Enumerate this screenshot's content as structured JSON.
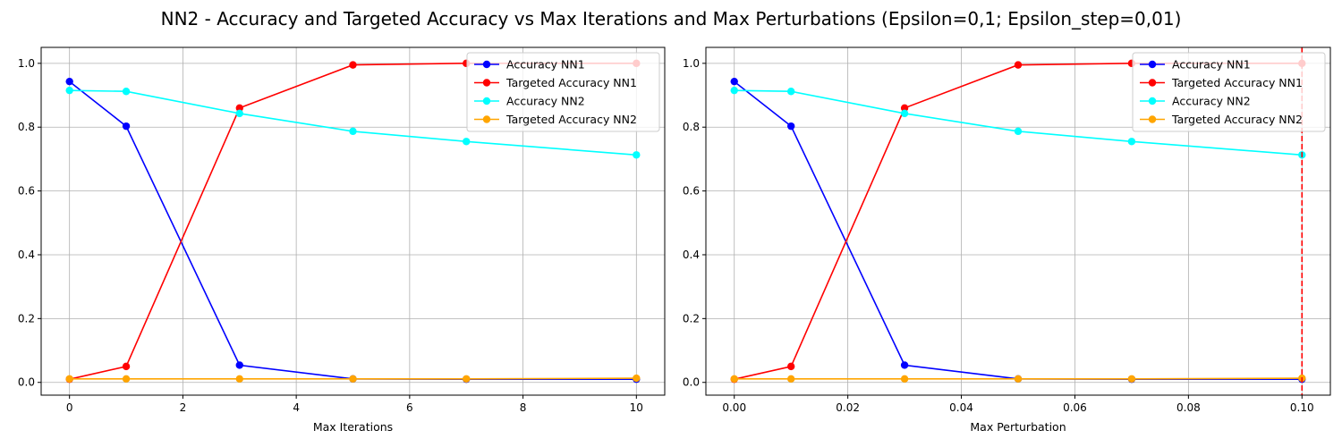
{
  "figure": {
    "suptitle": "NN2 - Accuracy and Targeted Accuracy vs Max Iterations and Max Perturbations (Epsilon=0,1; Epsilon_step=0,01)"
  },
  "chart_data": [
    {
      "type": "line",
      "xlabel": "Max Iterations",
      "ylabel": "",
      "x": [
        0,
        1,
        3,
        5,
        7,
        10
      ],
      "xlim": [
        -0.5,
        10.5
      ],
      "ylim": [
        -0.04,
        1.05
      ],
      "xticks": [
        0,
        2,
        4,
        6,
        8,
        10
      ],
      "xtick_labels": [
        "0",
        "2",
        "4",
        "6",
        "8",
        "10"
      ],
      "yticks": [
        0.0,
        0.2,
        0.4,
        0.6,
        0.8,
        1.0
      ],
      "ytick_labels": [
        "0.0",
        "0.2",
        "0.4",
        "0.6",
        "0.8",
        "1.0"
      ],
      "grid": true,
      "legend": "top-right",
      "series": [
        {
          "name": "Accuracy NN1",
          "color": "#0000ff",
          "values": [
            0.943,
            0.803,
            0.054,
            0.011,
            0.01,
            0.01
          ]
        },
        {
          "name": "Targeted Accuracy NN1",
          "color": "#ff0000",
          "values": [
            0.01,
            0.05,
            0.86,
            0.995,
            1.0,
            1.0
          ]
        },
        {
          "name": "Accuracy NN2",
          "color": "#00ffff",
          "values": [
            0.915,
            0.912,
            0.843,
            0.787,
            0.755,
            0.713
          ]
        },
        {
          "name": "Targeted Accuracy NN2",
          "color": "#ffa500",
          "values": [
            0.011,
            0.011,
            0.011,
            0.011,
            0.011,
            0.013
          ]
        }
      ]
    },
    {
      "type": "line",
      "xlabel": "Max Perturbation",
      "ylabel": "",
      "x": [
        0.0,
        0.01,
        0.03,
        0.05,
        0.07,
        0.1
      ],
      "xlim": [
        -0.005,
        0.105
      ],
      "ylim": [
        -0.04,
        1.05
      ],
      "xticks": [
        0.0,
        0.02,
        0.04,
        0.06,
        0.08,
        0.1
      ],
      "xtick_labels": [
        "0.00",
        "0.02",
        "0.04",
        "0.06",
        "0.08",
        "0.10"
      ],
      "yticks": [
        0.0,
        0.2,
        0.4,
        0.6,
        0.8,
        1.0
      ],
      "ytick_labels": [
        "0.0",
        "0.2",
        "0.4",
        "0.6",
        "0.8",
        "1.0"
      ],
      "grid": true,
      "legend": "top-right",
      "vline": {
        "x": 0.1,
        "color": "#ff0000",
        "style": "dashed"
      },
      "series": [
        {
          "name": "Accuracy NN1",
          "color": "#0000ff",
          "values": [
            0.943,
            0.803,
            0.054,
            0.011,
            0.01,
            0.01
          ]
        },
        {
          "name": "Targeted Accuracy NN1",
          "color": "#ff0000",
          "values": [
            0.01,
            0.05,
            0.86,
            0.995,
            1.0,
            1.0
          ]
        },
        {
          "name": "Accuracy NN2",
          "color": "#00ffff",
          "values": [
            0.915,
            0.912,
            0.843,
            0.787,
            0.755,
            0.713
          ]
        },
        {
          "name": "Targeted Accuracy NN2",
          "color": "#ffa500",
          "values": [
            0.011,
            0.011,
            0.011,
            0.011,
            0.011,
            0.013
          ]
        }
      ]
    }
  ]
}
